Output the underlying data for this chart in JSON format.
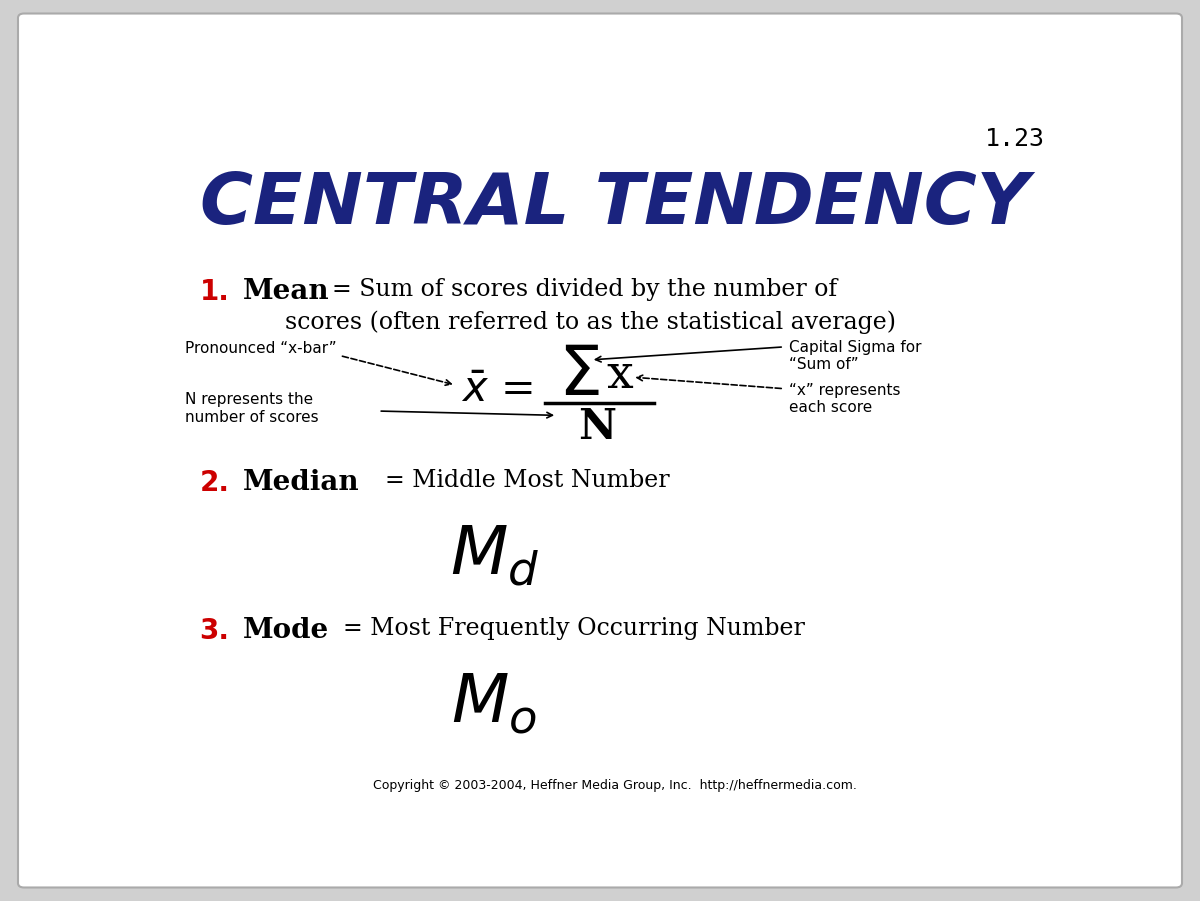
{
  "bg_color": "#d0d0d0",
  "slide_bg": "#ffffff",
  "title": "CENTRAL TENDENCY",
  "title_color": "#1a237e",
  "title_fontsize": 52,
  "slide_number": "1.23",
  "slide_number_fontsize": 18,
  "copyright": "Copyright © 2003-2004, Heffner Media Group, Inc.  http://heffnermedia.com.",
  "annotations": {
    "pronounced": "Pronounced “x-bar”",
    "n_represents": "N represents the\nnumber of scores",
    "capital_sigma": "Capital Sigma for\n“Sum of”",
    "x_represents": "“x” represents\neach score"
  }
}
